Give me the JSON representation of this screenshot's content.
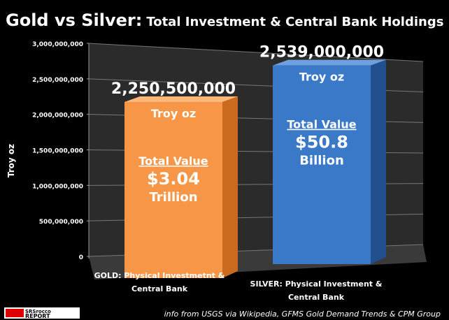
{
  "chart_data": {
    "type": "bar",
    "title_main": "Gold vs Silver:",
    "title_sub": "Total Investment & Central Bank Holdings",
    "ylabel": "Troy  oz",
    "ylim": [
      0,
      3000000000
    ],
    "yticks": [
      "0",
      "500,000,000",
      "1,000,000,000",
      "1,500,000,000",
      "2,000,000,000",
      "2,500,000,000",
      "3,000,000,000"
    ],
    "categories": [
      "GOLD: Physical Investmetnt & Central Bank",
      "SILVER: Physical Investment & Central Bank"
    ],
    "category_lines": [
      [
        "GOLD: Physical Investmetnt &",
        "Central Bank"
      ],
      [
        "SILVER: Physical Investment &",
        "Central Bank"
      ]
    ],
    "values": [
      2250500000,
      2539000000
    ],
    "value_labels": [
      "2,250,500,000",
      "2,539,000,000"
    ],
    "unit_label": "Troy oz",
    "total_value_label": "Total Value",
    "total_values": [
      "$3.04",
      "$50.8"
    ],
    "total_units": [
      "Trillion",
      "Billion"
    ],
    "colors": {
      "gold": "#f79646",
      "silver": "#3a78c8",
      "wall": "#2b2b2b"
    },
    "grid": true
  },
  "footer": {
    "source": "info from USGS via Wikipedia, GFMS Gold Demand Trends & CPM Group",
    "logo_text": "SRSrocco REPORT"
  }
}
